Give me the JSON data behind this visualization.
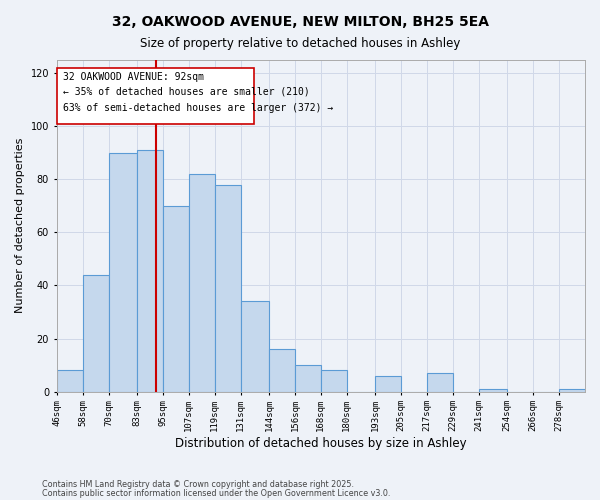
{
  "title": "32, OAKWOOD AVENUE, NEW MILTON, BH25 5EA",
  "subtitle": "Size of property relative to detached houses in Ashley",
  "xlabel": "Distribution of detached houses by size in Ashley",
  "ylabel": "Number of detached properties",
  "property_label": "32 OAKWOOD AVENUE: 92sqm",
  "pct_smaller": 35,
  "count_smaller": 210,
  "pct_larger": 63,
  "count_larger": 372,
  "bins": [
    46,
    58,
    70,
    83,
    95,
    107,
    119,
    131,
    144,
    156,
    168,
    180,
    193,
    205,
    217,
    229,
    241,
    254,
    266,
    278,
    290
  ],
  "counts": [
    8,
    44,
    90,
    91,
    70,
    82,
    78,
    34,
    16,
    10,
    8,
    0,
    6,
    0,
    7,
    0,
    1,
    0,
    0,
    1
  ],
  "bar_color": "#c5d8ed",
  "bar_edge_color": "#5b9bd5",
  "vline_color": "#cc0000",
  "vline_x": 92,
  "box_color": "#cc0000",
  "grid_color": "#d0d8e8",
  "bg_color": "#eef2f8",
  "ylim": [
    0,
    125
  ],
  "yticks": [
    0,
    20,
    40,
    60,
    80,
    100,
    120
  ],
  "footnote1": "Contains HM Land Registry data © Crown copyright and database right 2025.",
  "footnote2": "Contains public sector information licensed under the Open Government Licence v3.0."
}
